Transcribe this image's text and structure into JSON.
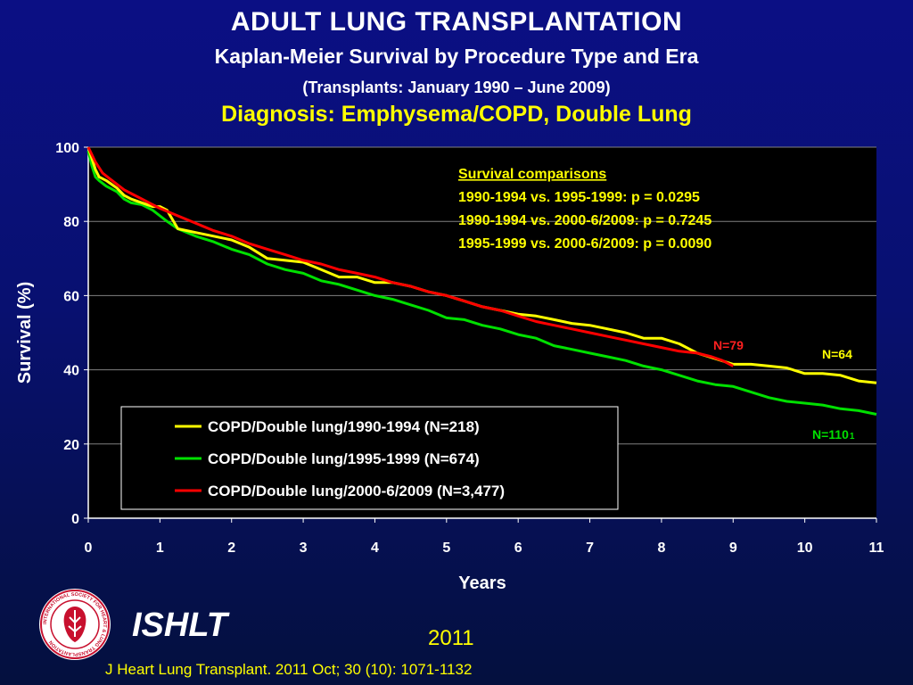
{
  "titles": {
    "main": "ADULT LUNG TRANSPLANTATION",
    "sub": "Kaplan-Meier Survival by Procedure Type and Era",
    "period": "(Transplants: January 1990 – June 2009)",
    "diagnosis": "Diagnosis: Emphysema/COPD, Double Lung"
  },
  "annotations": {
    "heading": "Survival comparisons",
    "lines": [
      "1990-1994 vs. 1995-1999:  p = 0.0295",
      "1990-1994 vs. 2000-6/2009: p = 0.7245",
      "1995-1999 vs. 2000-6/2009: p = 0.0090"
    ],
    "n_red": "N=79",
    "n_yellow": "N=64",
    "n_green_base": "N=110",
    "n_green_sub": "1"
  },
  "footer": {
    "logo_text": "ISHLT",
    "year": "2011",
    "citation": "J Heart Lung Transplant. 2011 Oct; 30 (10): 1071-1132",
    "seal_text": "INTERNATIONAL SOCIETY FOR HEART & LUNG TRANSPLANTATION"
  },
  "colors": {
    "background": "#0a0f7a",
    "plot_bg": "#000000",
    "yellow": "#ffff00",
    "green": "#00e000",
    "red": "#ff0000"
  },
  "chart_data": {
    "type": "line",
    "title": "",
    "xlabel": "Years",
    "ylabel": "Survival (%)",
    "xlim": [
      0,
      11
    ],
    "ylim": [
      0,
      100
    ],
    "xticks": [
      0,
      1,
      2,
      3,
      4,
      5,
      6,
      7,
      8,
      9,
      10,
      11
    ],
    "yticks": [
      0,
      20,
      40,
      60,
      80,
      100
    ],
    "grid": "horizontal",
    "legend_position": "lower-left",
    "series": [
      {
        "name": "COPD/Double lung/1990-1994 (N=218)",
        "color": "#ffff00",
        "x": [
          0,
          0.05,
          0.1,
          0.15,
          0.25,
          0.4,
          0.5,
          0.6,
          0.75,
          0.9,
          1.0,
          1.1,
          1.25,
          1.5,
          1.75,
          2.0,
          2.25,
          2.5,
          2.75,
          3.0,
          3.25,
          3.5,
          3.75,
          4.0,
          4.25,
          4.5,
          4.75,
          5.0,
          5.25,
          5.5,
          5.75,
          6.0,
          6.25,
          6.5,
          6.75,
          7.0,
          7.25,
          7.5,
          7.75,
          8.0,
          8.25,
          8.5,
          8.75,
          9.0,
          9.25,
          9.5,
          9.75,
          10.0,
          10.25,
          10.5,
          10.75,
          11.0
        ],
        "values": [
          100,
          97,
          94,
          92,
          91,
          89,
          87,
          86,
          85,
          84,
          84,
          83,
          78,
          77,
          76,
          75,
          73,
          70,
          69.5,
          69,
          67,
          65,
          65,
          63.5,
          63.5,
          62.5,
          61,
          60,
          58.5,
          57,
          56,
          55,
          54.5,
          53.5,
          52.5,
          52,
          51,
          50,
          48.5,
          48.5,
          47,
          44.5,
          43,
          41.5,
          41.5,
          41,
          40.5,
          39,
          39,
          38.5,
          37,
          36.5
        ]
      },
      {
        "name": "COPD/Double lung/1995-1999 (N=674)",
        "color": "#00e000",
        "x": [
          0,
          0.05,
          0.1,
          0.15,
          0.25,
          0.4,
          0.5,
          0.6,
          0.75,
          0.9,
          1.0,
          1.1,
          1.25,
          1.5,
          1.75,
          2.0,
          2.25,
          2.5,
          2.75,
          3.0,
          3.25,
          3.5,
          3.75,
          4.0,
          4.25,
          4.5,
          4.75,
          5.0,
          5.25,
          5.5,
          5.75,
          6.0,
          6.25,
          6.5,
          6.75,
          7.0,
          7.25,
          7.5,
          7.75,
          8.0,
          8.25,
          8.5,
          8.75,
          9.0,
          9.25,
          9.5,
          9.75,
          10.0,
          10.25,
          10.5,
          10.75,
          11.0
        ],
        "values": [
          99,
          95,
          92,
          91,
          89.5,
          88,
          86,
          85,
          84.5,
          83,
          81.5,
          80,
          78,
          76,
          74.5,
          72.5,
          71,
          68.5,
          67,
          66,
          64,
          63,
          61.5,
          60,
          59,
          57.5,
          56,
          54,
          53.5,
          52,
          51,
          49.5,
          48.5,
          46.5,
          45.5,
          44.5,
          43.5,
          42.5,
          41,
          40,
          38.5,
          37,
          36,
          35.5,
          34,
          32.5,
          31.5,
          31,
          30.5,
          29.5,
          29,
          28
        ]
      },
      {
        "name": "COPD/Double lung/2000-6/2009 (N=3,477)",
        "color": "#ff0000",
        "x": [
          0,
          0.05,
          0.1,
          0.2,
          0.3,
          0.4,
          0.5,
          0.6,
          0.75,
          0.9,
          1.0,
          1.25,
          1.5,
          1.75,
          2.0,
          2.25,
          2.5,
          2.75,
          3.0,
          3.25,
          3.5,
          3.75,
          4.0,
          4.25,
          4.5,
          4.75,
          5.0,
          5.25,
          5.5,
          5.75,
          6.0,
          6.25,
          6.5,
          6.75,
          7.0,
          7.25,
          7.5,
          7.75,
          8.0,
          8.25,
          8.5,
          8.7,
          8.85,
          9.0
        ],
        "values": [
          100,
          98,
          96,
          93,
          91.5,
          90,
          88.5,
          87.5,
          86,
          84.5,
          83.5,
          81.5,
          79.5,
          77.5,
          76,
          74,
          72.5,
          71,
          69.5,
          68.5,
          67,
          66,
          65,
          63.5,
          62.5,
          61,
          60,
          58.5,
          57,
          56,
          54.5,
          53,
          52,
          51,
          50,
          49,
          48,
          47,
          46,
          45,
          44.5,
          43.5,
          42.5,
          41
        ]
      }
    ]
  }
}
